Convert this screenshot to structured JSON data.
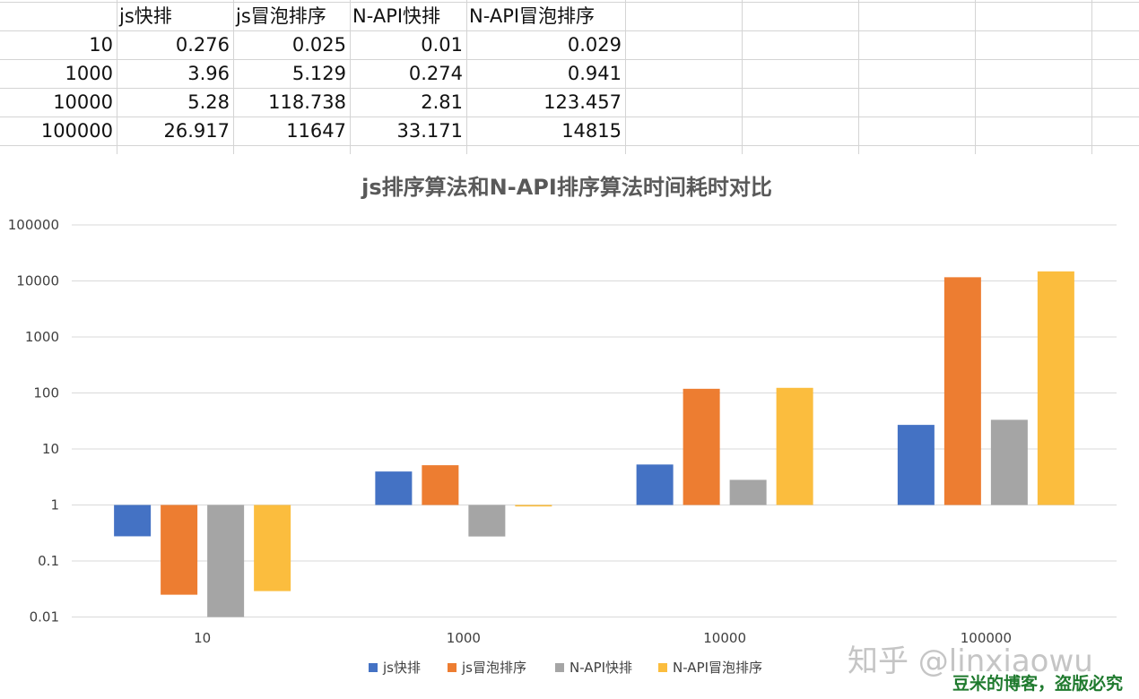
{
  "table": {
    "headers": [
      "",
      "js快排",
      "js冒泡排序",
      "N-API快排",
      "N-API冒泡排序"
    ],
    "rows": [
      [
        "10",
        "0.276",
        "0.025",
        "0.01",
        "0.029"
      ],
      [
        "1000",
        "3.96",
        "5.129",
        "0.274",
        "0.941"
      ],
      [
        "10000",
        "5.28",
        "118.738",
        "2.81",
        "123.457"
      ],
      [
        "100000",
        "26.917",
        "11647",
        "33.171",
        "14815"
      ]
    ]
  },
  "chart_data": {
    "type": "bar",
    "title": "js排序算法和N-API排序算法时间耗时对比",
    "categories": [
      "10",
      "1000",
      "10000",
      "100000"
    ],
    "series": [
      {
        "name": "js快排",
        "color": "#4472c4",
        "values": [
          0.276,
          3.96,
          5.28,
          26.917
        ]
      },
      {
        "name": "js冒泡排序",
        "color": "#ed7d31",
        "values": [
          0.025,
          5.129,
          118.738,
          11647
        ]
      },
      {
        "name": "N-API快排",
        "color": "#a5a5a5",
        "values": [
          0.01,
          0.274,
          2.81,
          33.171
        ]
      },
      {
        "name": "N-API冒泡排序",
        "color": "#fbbd3e",
        "values": [
          0.029,
          0.941,
          123.457,
          14815
        ]
      }
    ],
    "yscale": "log",
    "ylim": [
      0.01,
      100000
    ],
    "yticks": [
      "0.01",
      "0.1",
      "1",
      "10",
      "100",
      "1000",
      "10000",
      "100000"
    ],
    "baseline": 1,
    "grid": true,
    "legend": "bottom"
  },
  "watermark": {
    "text": "知乎 @linxiaowu",
    "subtext": "豆米的博客，盗版必究"
  }
}
